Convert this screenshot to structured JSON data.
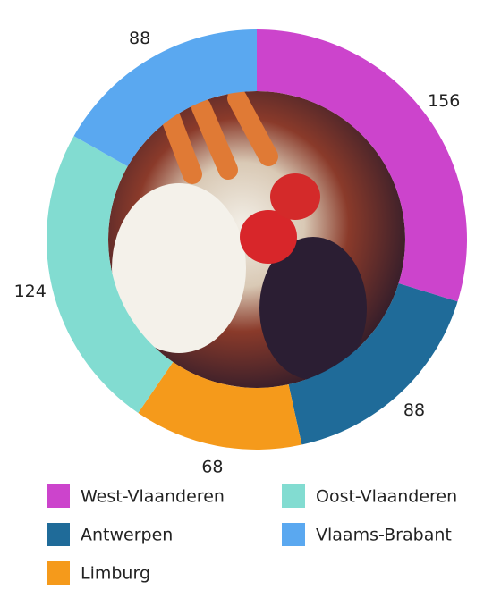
{
  "chart_data": {
    "type": "donut",
    "categories": [
      "West-Vlaanderen",
      "Antwerpen",
      "Limburg",
      "Oost-Vlaanderen",
      "Vlaams-Brabant"
    ],
    "values": [
      156,
      88,
      68,
      124,
      88
    ],
    "colors": [
      "#cc44cc",
      "#1f6b99",
      "#f59a1b",
      "#82dcd1",
      "#5aa8f0"
    ]
  }
}
